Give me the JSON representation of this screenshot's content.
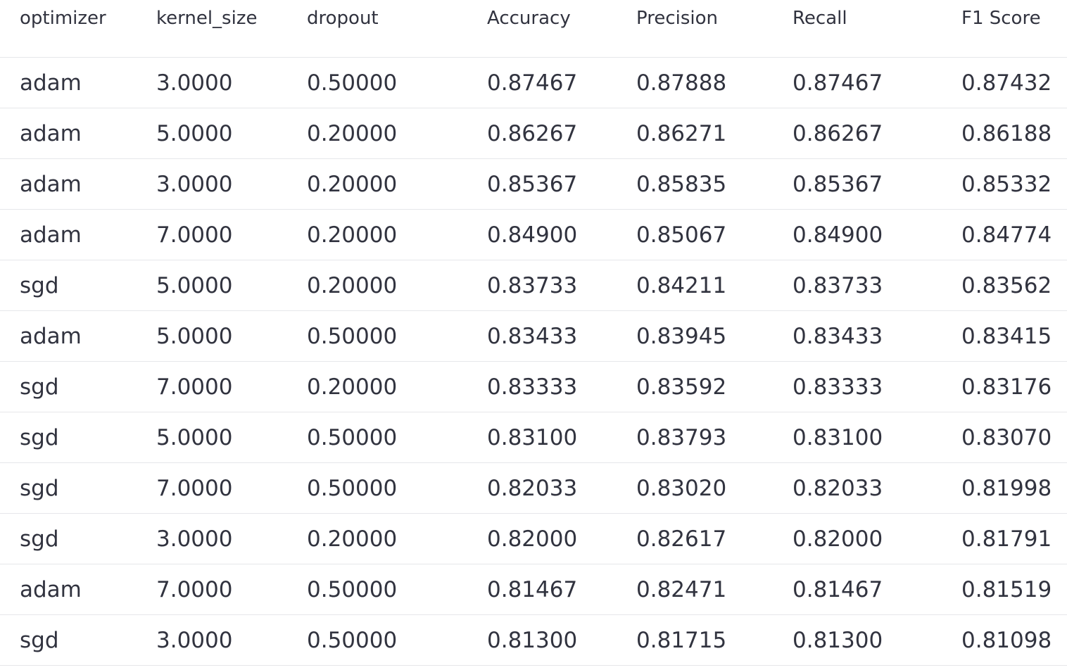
{
  "table": {
    "columns": [
      "optimizer",
      "kernel_size",
      "dropout",
      "Accuracy",
      "Precision",
      "Recall",
      "F1 Score"
    ],
    "rows": [
      [
        "adam",
        "3.0000",
        "0.50000",
        "0.87467",
        "0.87888",
        "0.87467",
        "0.87432"
      ],
      [
        "adam",
        "5.0000",
        "0.20000",
        "0.86267",
        "0.86271",
        "0.86267",
        "0.86188"
      ],
      [
        "adam",
        "3.0000",
        "0.20000",
        "0.85367",
        "0.85835",
        "0.85367",
        "0.85332"
      ],
      [
        "adam",
        "7.0000",
        "0.20000",
        "0.84900",
        "0.85067",
        "0.84900",
        "0.84774"
      ],
      [
        "sgd",
        "5.0000",
        "0.20000",
        "0.83733",
        "0.84211",
        "0.83733",
        "0.83562"
      ],
      [
        "adam",
        "5.0000",
        "0.50000",
        "0.83433",
        "0.83945",
        "0.83433",
        "0.83415"
      ],
      [
        "sgd",
        "7.0000",
        "0.20000",
        "0.83333",
        "0.83592",
        "0.83333",
        "0.83176"
      ],
      [
        "sgd",
        "5.0000",
        "0.50000",
        "0.83100",
        "0.83793",
        "0.83100",
        "0.83070"
      ],
      [
        "sgd",
        "7.0000",
        "0.50000",
        "0.82033",
        "0.83020",
        "0.82033",
        "0.81998"
      ],
      [
        "sgd",
        "3.0000",
        "0.20000",
        "0.82000",
        "0.82617",
        "0.82000",
        "0.81791"
      ],
      [
        "adam",
        "7.0000",
        "0.50000",
        "0.81467",
        "0.82471",
        "0.81467",
        "0.81519"
      ],
      [
        "sgd",
        "3.0000",
        "0.50000",
        "0.81300",
        "0.81715",
        "0.81300",
        "0.81098"
      ]
    ]
  },
  "colors": {
    "text": "#31333f",
    "divider": "#e6e7ea",
    "background": "#ffffff"
  }
}
